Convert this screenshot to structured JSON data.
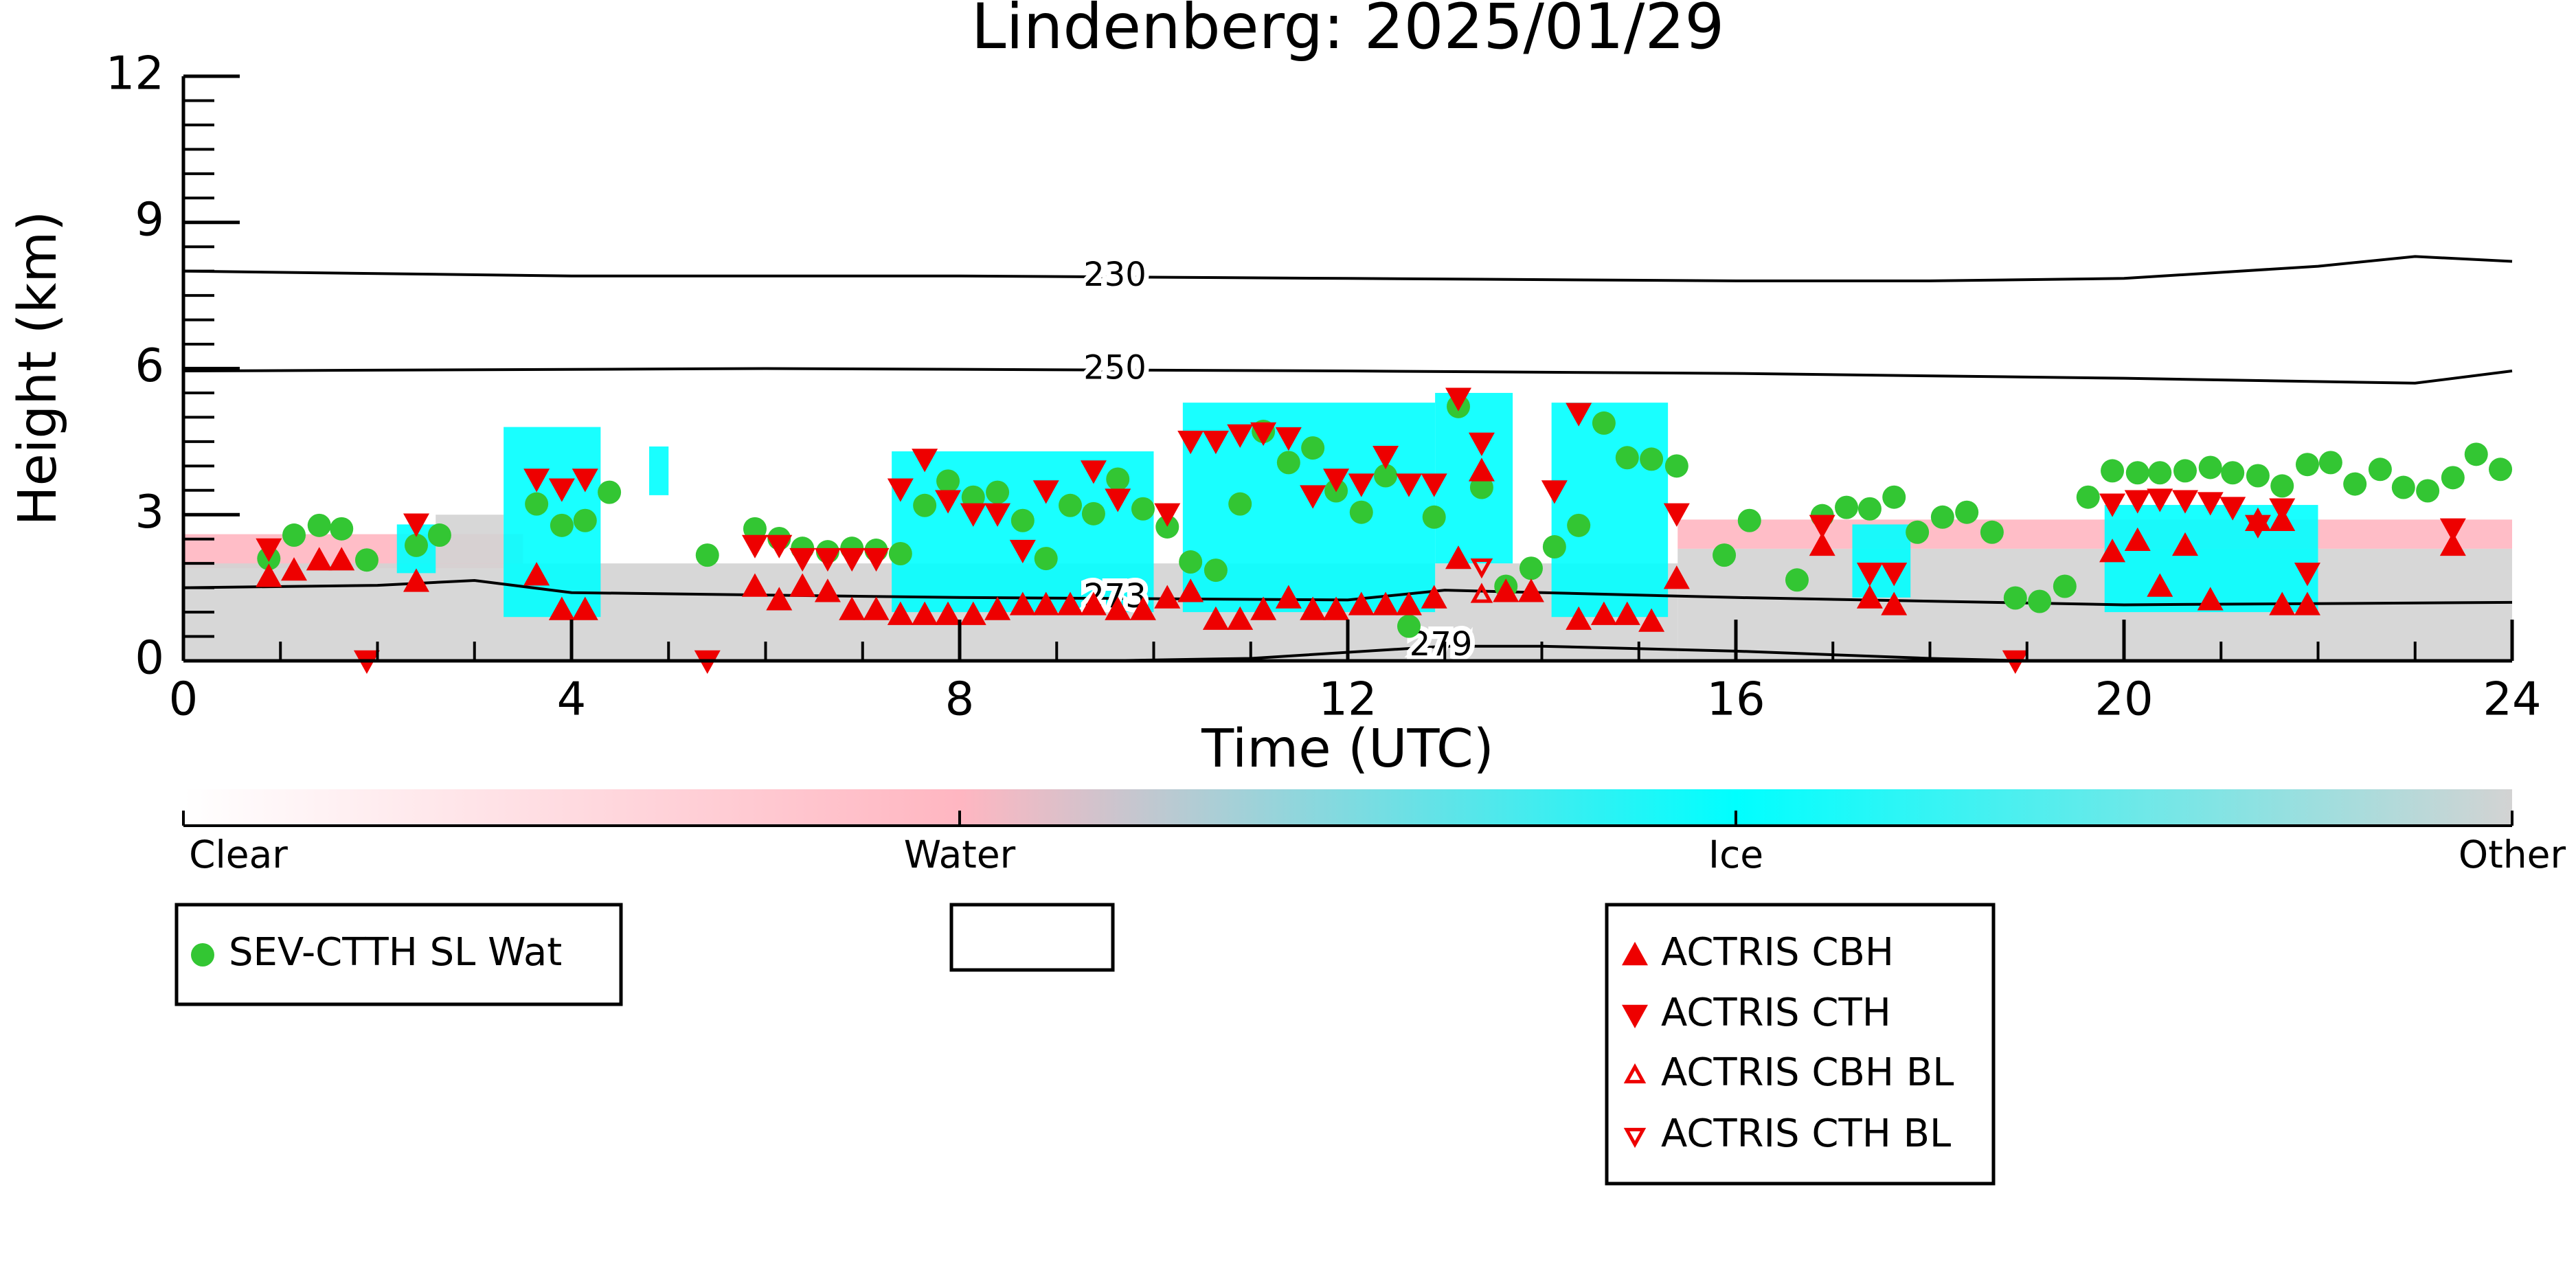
{
  "chart_data": {
    "type": "scatter",
    "title": "Lindenberg: 2025/01/29",
    "xlabel": "Time (UTC)",
    "ylabel": "Height (km)",
    "xlim": [
      0,
      24
    ],
    "ylim": [
      0,
      12
    ],
    "xticks": [
      0,
      4,
      8,
      12,
      16,
      20,
      24
    ],
    "yticks": [
      0,
      3,
      6,
      9,
      12
    ],
    "xminorticks": [
      1,
      2,
      3,
      5,
      6,
      7,
      9,
      10,
      11,
      13,
      14,
      15,
      17,
      18,
      19,
      21,
      22,
      23
    ],
    "yminorticks": [
      0.5,
      1,
      1.5,
      2,
      2.5,
      3.5,
      4,
      4.5,
      5,
      5.5,
      6.5,
      7,
      7.5,
      8,
      8.5,
      9.5,
      10,
      10.5,
      11,
      11.5
    ],
    "colorbar": {
      "labels": [
        "Clear",
        "Water",
        "Ice",
        "Other"
      ],
      "colors": [
        "#ffffff",
        "#ffb6c1",
        "#00ffff",
        "#d3d3d3"
      ]
    },
    "regions": [
      {
        "class": "Water",
        "x": [
          0,
          3.5
        ],
        "y": [
          1.9,
          2.6
        ]
      },
      {
        "class": "Water",
        "x": [
          15.4,
          24
        ],
        "y": [
          2.3,
          2.9
        ]
      },
      {
        "class": "Other",
        "x": [
          0,
          15.4
        ],
        "y": [
          0,
          2.0
        ]
      },
      {
        "class": "Other",
        "x": [
          15.4,
          24
        ],
        "y": [
          0,
          2.3
        ]
      },
      {
        "class": "Other",
        "x": [
          2.6,
          3.3
        ],
        "y": [
          2.0,
          3.0
        ]
      },
      {
        "class": "Ice",
        "x": [
          2.2,
          2.6
        ],
        "y": [
          1.8,
          2.8
        ]
      },
      {
        "class": "Ice",
        "x": [
          3.3,
          4.3
        ],
        "y": [
          0.9,
          4.8
        ]
      },
      {
        "class": "Ice",
        "x": [
          4.8,
          5.0
        ],
        "y": [
          3.4,
          4.4
        ]
      },
      {
        "class": "Ice",
        "x": [
          7.3,
          10.0
        ],
        "y": [
          1.0,
          4.3
        ]
      },
      {
        "class": "Ice",
        "x": [
          10.3,
          12.9
        ],
        "y": [
          1.0,
          5.3
        ]
      },
      {
        "class": "Ice",
        "x": [
          12.9,
          13.7
        ],
        "y": [
          2.0,
          5.5
        ]
      },
      {
        "class": "Ice",
        "x": [
          14.1,
          15.3
        ],
        "y": [
          0.9,
          5.3
        ]
      },
      {
        "class": "Ice",
        "x": [
          17.2,
          17.8
        ],
        "y": [
          1.3,
          2.8
        ]
      },
      {
        "class": "Ice",
        "x": [
          19.8,
          22.0
        ],
        "y": [
          1.0,
          3.2
        ]
      }
    ],
    "contours": [
      {
        "label": "230",
        "x": [
          0,
          4,
          8,
          12,
          16,
          18,
          20,
          22,
          23,
          24
        ],
        "values": [
          8.0,
          7.9,
          7.9,
          7.85,
          7.8,
          7.8,
          7.85,
          8.1,
          8.3,
          8.2
        ]
      },
      {
        "label": "250",
        "x": [
          0,
          6,
          12,
          16,
          20,
          23,
          24
        ],
        "values": [
          5.95,
          6.0,
          5.95,
          5.9,
          5.8,
          5.7,
          5.95
        ]
      },
      {
        "label": "273",
        "x": [
          0,
          2,
          3,
          4,
          8,
          12,
          13,
          16,
          20,
          24
        ],
        "values": [
          1.5,
          1.55,
          1.65,
          1.4,
          1.3,
          1.25,
          1.45,
          1.3,
          1.15,
          1.2
        ]
      },
      {
        "label": "279",
        "x": [
          9.5,
          11,
          13,
          14,
          16,
          18,
          19
        ],
        "values": [
          0,
          0.05,
          0.3,
          0.3,
          0.2,
          0.05,
          0
        ]
      }
    ],
    "series": [
      {
        "name": "SEV-CTTH SL Wat",
        "color": "#33c633",
        "marker": "circle",
        "x": [
          0.88,
          1.14,
          1.4,
          1.63,
          1.89,
          2.4,
          2.64,
          3.64,
          3.9,
          4.14,
          4.39,
          5.4,
          5.89,
          6.14,
          6.38,
          6.64,
          6.89,
          7.14,
          7.39,
          7.64,
          7.88,
          8.14,
          8.39,
          8.65,
          8.89,
          9.14,
          9.38,
          9.63,
          9.89,
          10.14,
          10.38,
          10.64,
          10.89,
          11.13,
          11.39,
          11.64,
          11.88,
          12.14,
          12.39,
          12.63,
          12.89,
          13.14,
          13.38,
          13.63,
          13.89,
          14.13,
          14.38,
          14.64,
          14.88,
          15.13,
          15.39,
          15.88,
          16.14,
          16.63,
          16.89,
          17.14,
          17.38,
          17.63,
          17.87,
          18.13,
          18.38,
          18.64,
          18.88,
          19.13,
          19.39,
          19.63,
          19.88,
          20.14,
          20.37,
          20.63,
          20.89,
          21.12,
          21.38,
          21.63,
          21.89,
          22.13,
          22.38,
          22.64,
          22.88,
          23.13,
          23.39,
          23.63,
          23.88
        ],
        "values": [
          2.1,
          2.58,
          2.78,
          2.71,
          2.07,
          2.37,
          2.58,
          3.22,
          2.78,
          2.88,
          3.46,
          2.17,
          2.71,
          2.51,
          2.31,
          2.24,
          2.31,
          2.27,
          2.2,
          3.19,
          3.69,
          3.36,
          3.46,
          2.88,
          2.1,
          3.19,
          3.02,
          3.73,
          3.12,
          2.75,
          2.03,
          1.86,
          3.22,
          4.71,
          4.07,
          4.37,
          3.49,
          3.05,
          3.8,
          0.71,
          2.95,
          5.22,
          3.56,
          1.53,
          1.9,
          2.34,
          2.78,
          4.88,
          4.17,
          4.14,
          4.0,
          2.17,
          2.88,
          1.66,
          2.98,
          3.15,
          3.12,
          3.36,
          2.64,
          2.95,
          3.05,
          2.64,
          1.29,
          1.22,
          1.53,
          3.36,
          3.9,
          3.86,
          3.86,
          3.9,
          3.97,
          3.86,
          3.8,
          3.59,
          4.03,
          4.07,
          3.63,
          3.93,
          3.56,
          3.49,
          3.76,
          4.24,
          3.93
        ]
      },
      {
        "name": "ACTRIS CBH",
        "color": "#ee0000",
        "marker": "triangle-up",
        "x": [
          0.88,
          1.14,
          1.4,
          1.63,
          2.4,
          3.64,
          3.9,
          4.14,
          5.89,
          6.14,
          6.38,
          6.64,
          6.89,
          7.14,
          7.39,
          7.64,
          7.88,
          8.14,
          8.39,
          8.65,
          8.89,
          9.14,
          9.38,
          9.63,
          9.89,
          10.14,
          10.38,
          10.64,
          10.89,
          11.13,
          11.39,
          11.64,
          11.88,
          12.14,
          12.39,
          12.63,
          12.89,
          13.14,
          13.38,
          13.63,
          13.89,
          14.38,
          14.64,
          14.88,
          15.13,
          15.39,
          16.89,
          17.38,
          17.63,
          19.88,
          20.14,
          20.37,
          20.63,
          20.89,
          21.38,
          21.63,
          21.63,
          21.89,
          23.39
        ],
        "values": [
          1.73,
          1.86,
          2.07,
          2.07,
          1.63,
          1.76,
          1.05,
          1.05,
          1.53,
          1.25,
          1.53,
          1.42,
          1.05,
          1.05,
          0.95,
          0.95,
          0.95,
          0.95,
          1.05,
          1.15,
          1.15,
          1.15,
          1.15,
          1.05,
          1.05,
          1.29,
          1.42,
          0.85,
          0.85,
          1.05,
          1.29,
          1.05,
          1.05,
          1.15,
          1.15,
          1.15,
          1.29,
          2.1,
          3.9,
          1.42,
          1.42,
          0.85,
          0.95,
          0.95,
          0.81,
          1.69,
          2.37,
          1.29,
          1.15,
          2.24,
          2.47,
          1.53,
          2.37,
          1.25,
          2.88,
          2.88,
          1.15,
          1.15,
          2.37
        ]
      },
      {
        "name": "ACTRIS CTH",
        "color": "#ee0000",
        "marker": "triangle-down",
        "x": [
          0.88,
          1.89,
          2.4,
          3.64,
          3.9,
          4.14,
          5.4,
          5.89,
          6.14,
          6.38,
          6.64,
          6.89,
          7.14,
          7.39,
          7.64,
          7.88,
          8.14,
          8.39,
          8.65,
          8.89,
          9.38,
          9.63,
          10.14,
          10.38,
          10.64,
          10.89,
          11.13,
          11.39,
          11.64,
          11.88,
          12.14,
          12.39,
          12.63,
          12.89,
          13.14,
          13.38,
          14.13,
          14.38,
          15.39,
          16.89,
          17.38,
          17.63,
          18.88,
          19.88,
          20.14,
          20.37,
          20.63,
          20.89,
          21.12,
          21.38,
          21.63,
          21.89,
          23.39
        ],
        "values": [
          2.3,
          0,
          2.81,
          3.73,
          3.53,
          3.73,
          0,
          2.37,
          2.37,
          2.1,
          2.1,
          2.1,
          2.1,
          3.53,
          4.14,
          3.29,
          3.02,
          3.02,
          2.27,
          3.49,
          3.9,
          3.32,
          3.02,
          4.51,
          4.51,
          4.64,
          4.68,
          4.58,
          3.39,
          3.73,
          3.63,
          4.2,
          3.63,
          3.63,
          5.39,
          4.47,
          3.49,
          5.08,
          3.02,
          2.78,
          1.8,
          1.8,
          0,
          3.22,
          3.29,
          3.32,
          3.29,
          3.25,
          3.15,
          2.78,
          3.12,
          1.8,
          2.71
        ]
      },
      {
        "name": "ACTRIS CBH BL",
        "color": "#ee0000",
        "marker": "triangle-up-open",
        "x": [
          13.38
        ],
        "values": [
          1.36
        ]
      },
      {
        "name": "ACTRIS CTH BL",
        "color": "#ee0000",
        "marker": "triangle-down-open",
        "x": [
          13.38
        ],
        "values": [
          1.93
        ]
      }
    ]
  }
}
